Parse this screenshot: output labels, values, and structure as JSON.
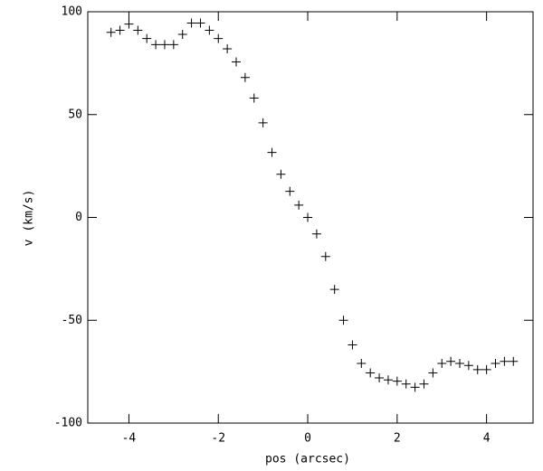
{
  "chart_data": {
    "type": "scatter",
    "marker": "plus",
    "color": "#000000",
    "x_label": "pos (arcsec)",
    "y_label": "v (km/s)",
    "x": [
      -4.4,
      -4.2,
      -4.0,
      -3.8,
      -3.6,
      -3.4,
      -3.2,
      -3.0,
      -2.8,
      -2.6,
      -2.4,
      -2.2,
      -2.0,
      -1.8,
      -1.6,
      -1.4,
      -1.2,
      -1.0,
      -0.8,
      -0.6,
      -0.4,
      -0.2,
      0,
      0.2,
      0.4,
      0.6,
      0.8,
      1.0,
      1.2,
      1.4,
      1.6,
      1.8,
      2.0,
      2.2,
      2.4,
      2.6,
      2.8,
      3.0,
      3.2,
      3.4,
      3.6,
      3.8,
      4.0,
      4.2,
      4.4,
      4.6
    ],
    "values": [
      90,
      91,
      94,
      91,
      87,
      84,
      84,
      84,
      89,
      94.5,
      94.5,
      91,
      87,
      82,
      75.6,
      68,
      58,
      46,
      31.6,
      21,
      12.7,
      6,
      0,
      -8,
      -19,
      -35,
      -50,
      -62,
      -71,
      -75.6,
      -78,
      -79,
      -79.6,
      -81,
      -82.6,
      -81,
      -75.6,
      -71,
      -70,
      -71,
      -72,
      -74,
      -74,
      -71,
      -70,
      -70
    ],
    "xlim": [
      -4.92,
      5.04
    ],
    "xticks": [
      -4,
      -2,
      0,
      2,
      4
    ],
    "ylim": [
      -100,
      100
    ],
    "yticks": [
      -100,
      -50,
      0,
      50,
      100
    ]
  }
}
